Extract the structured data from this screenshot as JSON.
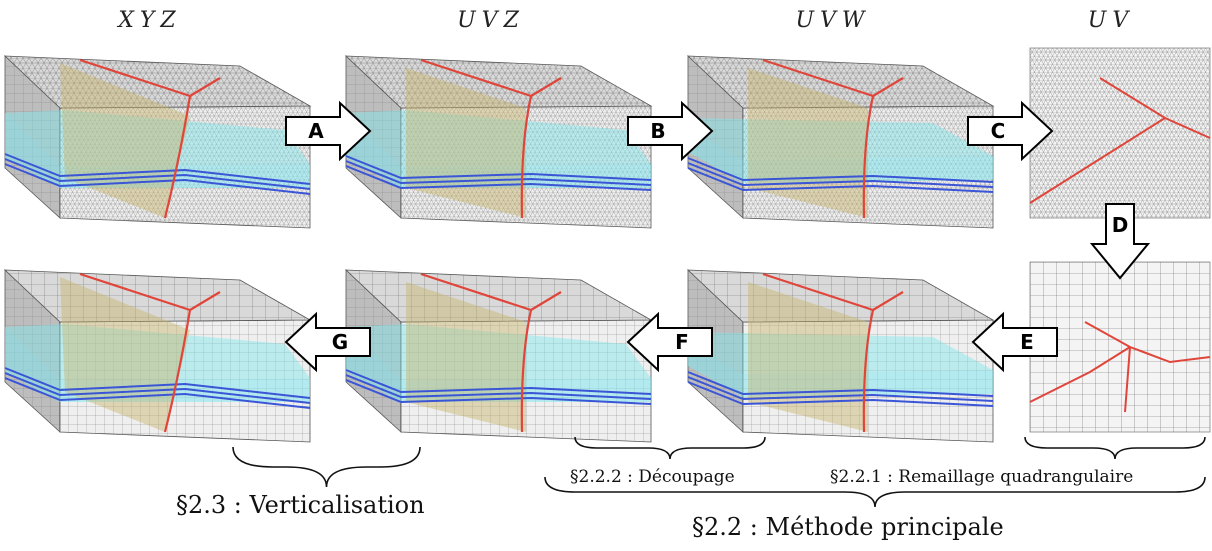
{
  "columns": [
    "XYZ",
    "UVZ",
    "UVW",
    "UV"
  ],
  "steps": [
    "A",
    "B",
    "C",
    "D",
    "E",
    "F",
    "G"
  ],
  "sections": {
    "decoupage": "§2.2.2 : Découpage",
    "remaillage": "§2.2.1 : Remaillage quadrangulaire",
    "verticalisation": "§2.3 : Verticalisation",
    "methode": "§2.2 : Méthode principale"
  },
  "colors": {
    "fault": "#e0453a",
    "horizon": "#3a55d6",
    "layer": "#7fe6ee",
    "fault_plane": "#c8b46a",
    "mesh_line": "#555555",
    "block_top": "#d9d9d9",
    "block_front": "#efefef",
    "block_side": "#bdbdbd"
  }
}
